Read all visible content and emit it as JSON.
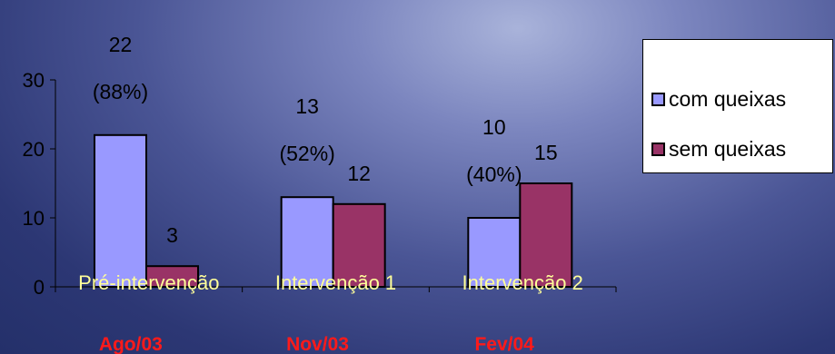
{
  "chart_data": {
    "type": "bar",
    "categories": [
      "Pré-intervenção",
      "Intervenção 1",
      "Intervenção 2"
    ],
    "sub_labels": [
      "Ago/03",
      "Nov/03",
      "Fev/04"
    ],
    "series": [
      {
        "name": "com queixas",
        "values": [
          22,
          13,
          10
        ],
        "labels": [
          "22",
          "13",
          "10"
        ],
        "pct_labels": [
          "(88%)",
          "(52%)",
          "(40%)"
        ],
        "color": "#9999ff"
      },
      {
        "name": "sem queixas",
        "values": [
          3,
          12,
          15
        ],
        "labels": [
          "3",
          "12",
          "15"
        ],
        "color": "#993366"
      }
    ],
    "ylim": [
      0,
      30
    ],
    "yticks": [
      0,
      10,
      20,
      30
    ],
    "title": "",
    "xlabel": "",
    "ylabel": "",
    "grid": false,
    "legend_position": "right"
  }
}
